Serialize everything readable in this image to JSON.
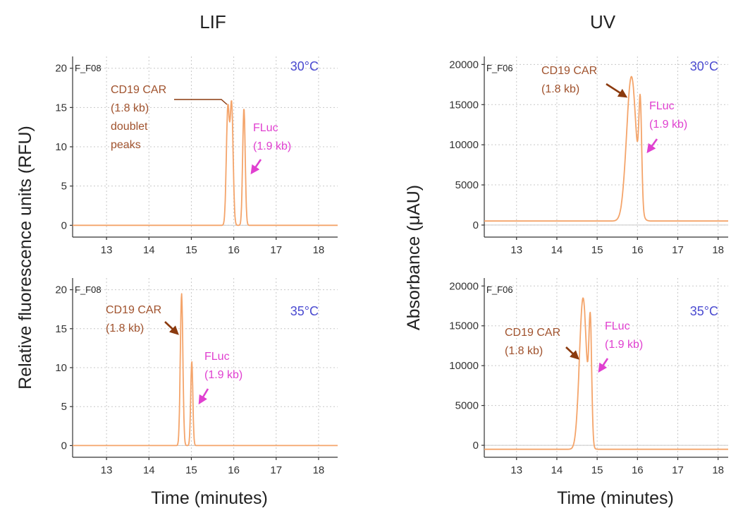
{
  "colors": {
    "trace": "#f4a46a",
    "temperature": "#4a4ad0",
    "cd19_annotation": "#a0522d",
    "cd19_arrow": "#8b3a0e",
    "fluc_annotation": "#e040d0"
  },
  "columns": {
    "left_title": "LIF",
    "right_title": "UV",
    "left_ylabel": "Relative fluorescence units (RFU)",
    "right_ylabel": "Absorbance (μAU)",
    "left_xlabel": "Time (minutes)",
    "right_xlabel": "Time (minutes)"
  },
  "chart_data": [
    {
      "id": "lif30",
      "type": "line",
      "well": "F_F08",
      "temperature": "30°C",
      "xlim": [
        12.2,
        18.45
      ],
      "ylim": [
        -1.5,
        21.5
      ],
      "xticks": [
        13,
        14,
        15,
        16,
        17,
        18
      ],
      "yticks": [
        0,
        5,
        10,
        15,
        20
      ],
      "baseline": 0,
      "peaks": [
        {
          "x": 15.86,
          "y": 14.8,
          "w": 0.035
        },
        {
          "x": 15.95,
          "y": 15.3,
          "w": 0.035
        },
        {
          "x": 16.24,
          "y": 14.9,
          "w": 0.03
        }
      ],
      "annotations": [
        {
          "kind": "car",
          "lines": [
            "CD19 CAR",
            "(1.8 kb)",
            "doublet",
            "peaks"
          ]
        },
        {
          "kind": "fluc",
          "lines": [
            "FLuc",
            "(1.9 kb)"
          ]
        }
      ]
    },
    {
      "id": "uv30",
      "type": "line",
      "well": "F_F06",
      "temperature": "30°C",
      "xlim": [
        12.2,
        18.25
      ],
      "ylim": [
        -1500,
        21000
      ],
      "xticks": [
        13,
        14,
        15,
        16,
        17,
        18
      ],
      "yticks": [
        0,
        5000,
        10000,
        15000,
        20000
      ],
      "baseline": 500,
      "peaks": [
        {
          "x": 15.85,
          "y": 18500,
          "w": 0.12
        },
        {
          "x": 16.07,
          "y": 12800,
          "w": 0.035
        }
      ],
      "annotations": [
        {
          "kind": "car",
          "lines": [
            "CD19 CAR",
            "(1.8 kb)"
          ]
        },
        {
          "kind": "fluc",
          "lines": [
            "FLuc",
            "(1.9 kb)"
          ]
        }
      ]
    },
    {
      "id": "lif35",
      "type": "line",
      "well": "F_F08",
      "temperature": "35°C",
      "xlim": [
        12.2,
        18.45
      ],
      "ylim": [
        -1.5,
        21.5
      ],
      "xticks": [
        13,
        14,
        15,
        16,
        17,
        18
      ],
      "yticks": [
        0,
        5,
        10,
        15,
        20
      ],
      "baseline": 0,
      "peaks": [
        {
          "x": 14.77,
          "y": 19.5,
          "w": 0.03
        },
        {
          "x": 15.01,
          "y": 10.8,
          "w": 0.025
        }
      ],
      "annotations": [
        {
          "kind": "car",
          "lines": [
            "CD19 CAR",
            "(1.8 kb)"
          ]
        },
        {
          "kind": "fluc",
          "lines": [
            "FLuc",
            "(1.9 kb)"
          ]
        }
      ]
    },
    {
      "id": "uv35",
      "type": "line",
      "well": "F_F06",
      "temperature": "35°C",
      "xlim": [
        12.2,
        18.25
      ],
      "ylim": [
        -1500,
        21000
      ],
      "xticks": [
        13,
        14,
        15,
        16,
        17,
        18
      ],
      "yticks": [
        0,
        5000,
        10000,
        15000,
        20000
      ],
      "baseline": -500,
      "peaks": [
        {
          "x": 14.65,
          "y": 18500,
          "w": 0.09
        },
        {
          "x": 14.83,
          "y": 14000,
          "w": 0.035
        }
      ],
      "annotations": [
        {
          "kind": "car",
          "lines": [
            "CD19 CAR",
            "(1.8 kb)"
          ]
        },
        {
          "kind": "fluc",
          "lines": [
            "FLuc",
            "(1.9 kb)"
          ]
        }
      ]
    }
  ]
}
